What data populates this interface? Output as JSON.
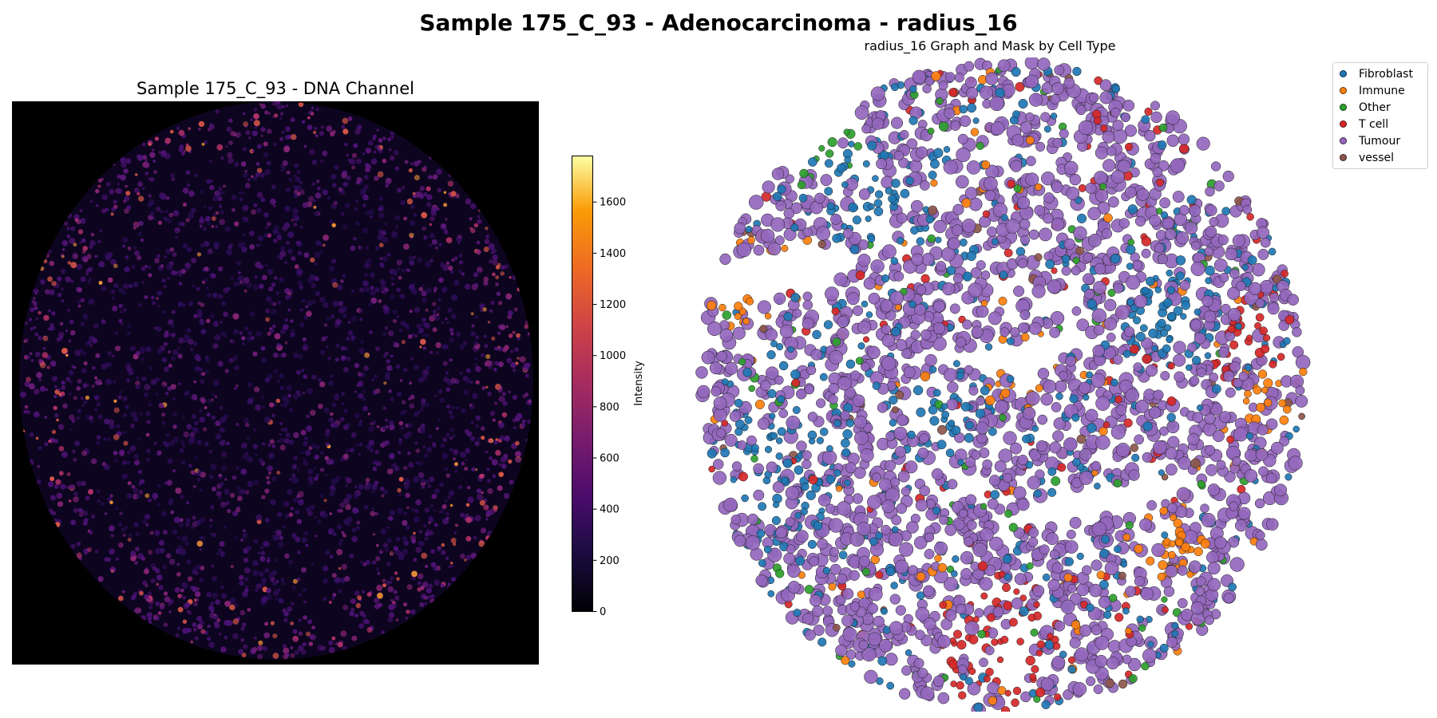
{
  "figure": {
    "suptitle": "Sample 175_C_93 - Adenocarcinoma - radius_16"
  },
  "chart_data": [
    {
      "type": "heatmap",
      "title": "Sample 175_C_93 - DNA Channel",
      "colormap": "inferno",
      "colorbar": {
        "label": "Intensity",
        "range": [
          0,
          1780
        ],
        "ticks": [
          0,
          200,
          400,
          600,
          800,
          1000,
          1200,
          1400,
          1600
        ],
        "tick_labels": [
          "0",
          "200",
          "400",
          "600",
          "800",
          "1000",
          "1200",
          "1400",
          "1600"
        ]
      },
      "grid": false,
      "axes_visible": false
    },
    {
      "type": "scatter",
      "title": "radius_16 Graph and Mask by Cell Type",
      "grid": false,
      "axes_visible": false,
      "legend_position": "top-right",
      "series": [
        {
          "name": "Fibroblast",
          "color": "#1f77b4"
        },
        {
          "name": "Immune",
          "color": "#ff7f0e"
        },
        {
          "name": "Other",
          "color": "#2ca02c"
        },
        {
          "name": "T cell",
          "color": "#d62728"
        },
        {
          "name": "Tumour",
          "color": "#9467bd"
        },
        {
          "name": "vessel",
          "color": "#8c564b"
        }
      ]
    }
  ]
}
